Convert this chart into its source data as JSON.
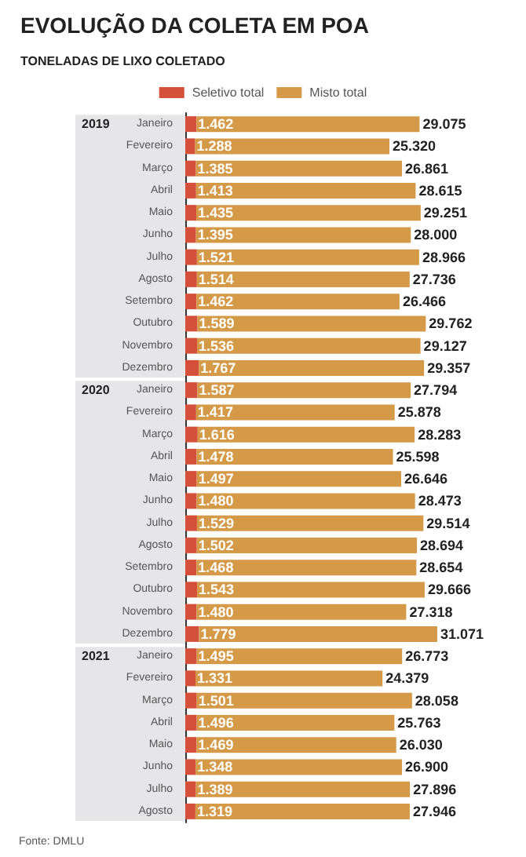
{
  "chart_data": {
    "type": "bar",
    "orientation": "horizontal",
    "stacked": true,
    "title": "EVOLUÇÃO DA COLETA EM POA",
    "subtitle": "TONELADAS DE LIXO COLETADO",
    "legend": "top",
    "categories": [
      "Janeiro",
      "Fevereiro",
      "Março",
      "Abril",
      "Maio",
      "Junho",
      "Julho",
      "Agosto",
      "Setembro",
      "Outubro",
      "Novembro",
      "Dezembro",
      "Janeiro",
      "Fevereiro",
      "Março",
      "Abril",
      "Maio",
      "Junho",
      "Julho",
      "Agosto",
      "Setembro",
      "Outubro",
      "Novembro",
      "Dezembro",
      "Janeiro",
      "Fevereiro",
      "Março",
      "Abril",
      "Maio",
      "Junho",
      "Julho",
      "Agosto"
    ],
    "series": [
      {
        "name": "Seletivo total",
        "color": "#d4503a",
        "values": [
          1462,
          1288,
          1385,
          1413,
          1435,
          1395,
          1521,
          1514,
          1462,
          1589,
          1536,
          1767,
          1587,
          1417,
          1616,
          1478,
          1497,
          1480,
          1529,
          1502,
          1468,
          1543,
          1480,
          1779,
          1495,
          1331,
          1501,
          1496,
          1469,
          1348,
          1389,
          1319
        ],
        "value_labels": [
          "1.462",
          "1.288",
          "1.385",
          "1.413",
          "1.435",
          "1.395",
          "1.521",
          "1.514",
          "1.462",
          "1.589",
          "1.536",
          "1.767",
          "1.587",
          "1.417",
          "1.616",
          "1.478",
          "1.497",
          "1.480",
          "1.529",
          "1.502",
          "1.468",
          "1.543",
          "1.480",
          "1.779",
          "1.495",
          "1.331",
          "1.501",
          "1.496",
          "1.469",
          "1.348",
          "1.389",
          "1.319"
        ]
      },
      {
        "name": "Misto total",
        "color": "#d49a48",
        "values": [
          29075,
          25320,
          26861,
          28615,
          29251,
          28000,
          28966,
          27736,
          26466,
          29762,
          29127,
          29357,
          27794,
          25878,
          28283,
          25598,
          26646,
          28473,
          29514,
          28694,
          28654,
          29666,
          27318,
          31071,
          26773,
          24379,
          28058,
          25763,
          26030,
          26900,
          27896,
          27946
        ],
        "value_labels": [
          "29.075",
          "25.320",
          "26.861",
          "28.615",
          "29.251",
          "28.000",
          "28.966",
          "27.736",
          "26.466",
          "29.762",
          "29.127",
          "29.357",
          "27.794",
          "25.878",
          "28.283",
          "25.598",
          "26.646",
          "28.473",
          "29.514",
          "28.694",
          "28.654",
          "29.666",
          "27.318",
          "31.071",
          "26.773",
          "24.379",
          "28.058",
          "25.763",
          "26.030",
          "26.900",
          "27.896",
          "27.946"
        ]
      }
    ],
    "annotations": [
      "2019",
      "2020",
      "2021",
      "Fonte: DMLU"
    ]
  }
}
